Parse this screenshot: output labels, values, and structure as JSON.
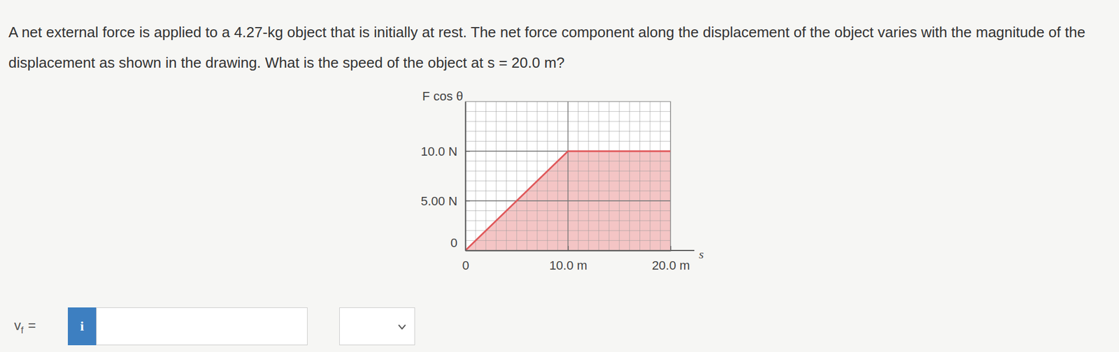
{
  "question": "A net external force is applied to a 4.27-kg object that is initially at rest. The net force component along the displacement of the object varies with the magnitude of the displacement as shown in the drawing. What is the speed of the object at s = 20.0 m?",
  "chart_data": {
    "type": "area",
    "x": [
      0,
      10,
      20
    ],
    "values": [
      0,
      10,
      10
    ],
    "xlabel": "s",
    "ylabel": "F cos θ",
    "xlim": [
      0,
      20
    ],
    "ylim": [
      0,
      15
    ],
    "xticks": [
      0,
      {
        "value": 10,
        "label": "10.0 m"
      },
      {
        "value": 20,
        "label": "20.0 m"
      }
    ],
    "yticks": [
      0,
      {
        "value": 5,
        "label": "5.00 N"
      },
      {
        "value": 10,
        "label": "10.0 N"
      }
    ],
    "grid": true,
    "color": "#e0585a"
  },
  "answer": {
    "variable": "v",
    "subscript": "f",
    "equals": "=",
    "icon": "i"
  }
}
